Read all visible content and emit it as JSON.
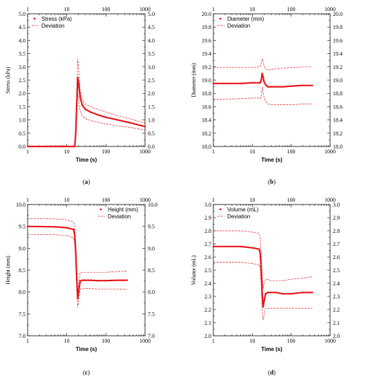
{
  "chart_data": [
    {
      "type": "line",
      "caption": {
        "open": "(",
        "letter": "a",
        "close": ")"
      },
      "xlabel": "Time (s)",
      "ylabel": "Stress (kPa)",
      "xscale": "log",
      "xlim": [
        1,
        1000
      ],
      "ylim": [
        0,
        5
      ],
      "x_ticks": [
        "1",
        "10",
        "100",
        "1000"
      ],
      "y_ticks": [
        "0.0",
        "0.5",
        "1.0",
        "1.5",
        "2.0",
        "2.5",
        "3.0",
        "3.5",
        "4.0",
        "4.5",
        "5.0"
      ],
      "legend": {
        "position": "top-left",
        "entries": [
          "Stress (kPa)",
          "Deviation"
        ]
      },
      "series": [
        {
          "name": "Stress (kPa)",
          "style": "dots",
          "x": [
            1,
            10,
            16,
            17,
            18,
            19,
            20,
            22,
            25,
            30,
            40,
            60,
            100,
            200,
            400,
            1000
          ],
          "y": [
            0,
            0,
            0,
            0.5,
            1.6,
            2.6,
            2.4,
            1.85,
            1.55,
            1.4,
            1.3,
            1.2,
            1.1,
            1.0,
            0.9,
            0.75
          ]
        },
        {
          "name": "Deviation",
          "style": "dashed",
          "x": [
            1,
            10,
            16,
            17,
            18,
            19,
            20,
            22,
            25,
            30,
            40,
            60,
            100,
            200,
            400,
            1000
          ],
          "y": [
            0,
            0,
            0,
            0.7,
            2.0,
            3.3,
            3.0,
            2.1,
            1.75,
            1.6,
            1.5,
            1.4,
            1.3,
            1.15,
            1.05,
            0.88
          ]
        },
        {
          "name": "Deviation",
          "style": "dashed",
          "x": [
            1,
            10,
            16,
            17,
            18,
            19,
            20,
            22,
            25,
            30,
            40,
            60,
            100,
            200,
            400,
            1000
          ],
          "y": [
            0,
            0,
            0,
            0.4,
            1.2,
            2.0,
            1.8,
            1.35,
            1.15,
            1.05,
            0.98,
            0.92,
            0.85,
            0.78,
            0.72,
            0.62
          ]
        }
      ]
    },
    {
      "type": "line",
      "caption": {
        "open": "(",
        "letter": "b",
        "close": ")"
      },
      "xlabel": "Time (s)",
      "ylabel": "Diameter (mm)",
      "xscale": "log",
      "xlim": [
        1,
        1000
      ],
      "ylim": [
        18,
        20
      ],
      "x_ticks": [
        "1",
        "10",
        "100",
        "1000"
      ],
      "y_ticks": [
        "18.0",
        "18.2",
        "18.4",
        "18.6",
        "18.8",
        "19.0",
        "19.2",
        "19.4",
        "19.6",
        "19.8",
        "20.0"
      ],
      "legend": {
        "position": "top-left",
        "entries": [
          "Diameter (mm)",
          "Deviation"
        ]
      },
      "series": [
        {
          "name": "Diameter (mm)",
          "style": "dots",
          "x": [
            1,
            5,
            10,
            15,
            16,
            17,
            18,
            19,
            20,
            22,
            25,
            30,
            40,
            60,
            100,
            200,
            350
          ],
          "y": [
            18.95,
            18.95,
            18.96,
            18.96,
            18.96,
            19.0,
            19.1,
            19.05,
            18.98,
            18.93,
            18.9,
            18.9,
            18.9,
            18.9,
            18.91,
            18.92,
            18.92
          ]
        },
        {
          "name": "Deviation",
          "style": "dashed",
          "x": [
            1,
            5,
            10,
            15,
            16,
            17,
            18,
            19,
            20,
            22,
            25,
            30,
            40,
            60,
            100,
            200,
            350
          ],
          "y": [
            19.19,
            19.19,
            19.19,
            19.2,
            19.21,
            19.25,
            19.32,
            19.28,
            19.22,
            19.17,
            19.15,
            19.16,
            19.17,
            19.18,
            19.19,
            19.2,
            19.2
          ]
        },
        {
          "name": "Deviation",
          "style": "dashed",
          "x": [
            1,
            5,
            10,
            15,
            16,
            17,
            18,
            19,
            20,
            22,
            25,
            30,
            40,
            60,
            100,
            200,
            350
          ],
          "y": [
            18.71,
            18.72,
            18.73,
            18.73,
            18.72,
            18.76,
            18.9,
            18.82,
            18.74,
            18.68,
            18.64,
            18.63,
            18.63,
            18.63,
            18.63,
            18.64,
            18.64
          ]
        }
      ]
    },
    {
      "type": "line",
      "caption": {
        "open": "(",
        "letter": "c",
        "close": ")"
      },
      "xlabel": "Time (s)",
      "ylabel": "Height (mm)",
      "xscale": "log",
      "xlim": [
        1,
        1000
      ],
      "ylim": [
        7,
        10
      ],
      "x_ticks": [
        "1",
        "10",
        "100",
        "1000"
      ],
      "y_ticks": [
        "7.0",
        "7.5",
        "8.0",
        "8.5",
        "9.0",
        "9.5",
        "10.0"
      ],
      "legend": {
        "position": "top-right",
        "entries": [
          "Height (mm)",
          "Deviation"
        ]
      },
      "series": [
        {
          "name": "Height (mm)",
          "style": "dots",
          "x": [
            1,
            5,
            10,
            15,
            16,
            17,
            18,
            19,
            20,
            22,
            25,
            30,
            40,
            60,
            100,
            200,
            350
          ],
          "y": [
            9.5,
            9.49,
            9.47,
            9.43,
            9.3,
            8.9,
            8.3,
            7.85,
            8.0,
            8.25,
            8.27,
            8.27,
            8.27,
            8.26,
            8.26,
            8.27,
            8.27
          ]
        },
        {
          "name": "Deviation",
          "style": "dashed",
          "x": [
            1,
            5,
            10,
            15,
            16,
            17,
            18,
            19,
            20,
            22,
            25,
            30,
            40,
            60,
            100,
            200,
            350
          ],
          "y": [
            9.68,
            9.67,
            9.65,
            9.6,
            9.48,
            9.1,
            8.5,
            8.0,
            8.2,
            8.44,
            8.45,
            8.45,
            8.45,
            8.45,
            8.45,
            8.47,
            8.48
          ]
        },
        {
          "name": "Deviation",
          "style": "dashed",
          "x": [
            1,
            5,
            10,
            15,
            16,
            17,
            18,
            19,
            20,
            22,
            25,
            30,
            40,
            60,
            100,
            200,
            350
          ],
          "y": [
            9.32,
            9.31,
            9.29,
            9.24,
            9.1,
            8.7,
            8.1,
            7.65,
            7.8,
            8.06,
            8.08,
            8.08,
            8.08,
            8.07,
            8.07,
            8.07,
            8.06
          ]
        }
      ]
    },
    {
      "type": "line",
      "caption": {
        "open": "(",
        "letter": "d",
        "close": ")"
      },
      "xlabel": "Time (s)",
      "ylabel": "Volume (mL)",
      "xscale": "log",
      "xlim": [
        1,
        1000
      ],
      "ylim": [
        2,
        3
      ],
      "x_ticks": [
        "1",
        "10",
        "100",
        "1000"
      ],
      "y_ticks": [
        "2.0",
        "2.1",
        "2.2",
        "2.3",
        "2.4",
        "2.5",
        "2.6",
        "2.7",
        "2.8",
        "2.9",
        "3.0"
      ],
      "legend": {
        "position": "top-left",
        "entries": [
          "Volume (mL)",
          "Deviation"
        ]
      },
      "series": [
        {
          "name": "Volume (mL)",
          "style": "dots",
          "x": [
            1,
            5,
            10,
            15,
            16,
            17,
            18,
            19,
            20,
            22,
            25,
            30,
            40,
            60,
            100,
            200,
            350
          ],
          "y": [
            2.68,
            2.68,
            2.67,
            2.66,
            2.63,
            2.5,
            2.32,
            2.22,
            2.26,
            2.32,
            2.33,
            2.33,
            2.33,
            2.32,
            2.32,
            2.33,
            2.33
          ]
        },
        {
          "name": "Deviation",
          "style": "dashed",
          "x": [
            1,
            5,
            10,
            15,
            16,
            17,
            18,
            19,
            20,
            22,
            25,
            30,
            40,
            60,
            100,
            200,
            350
          ],
          "y": [
            2.8,
            2.8,
            2.79,
            2.78,
            2.75,
            2.62,
            2.45,
            2.36,
            2.4,
            2.43,
            2.43,
            2.42,
            2.42,
            2.42,
            2.43,
            2.44,
            2.45
          ]
        },
        {
          "name": "Deviation",
          "style": "dashed",
          "x": [
            1,
            5,
            10,
            15,
            16,
            17,
            18,
            19,
            20,
            22,
            25,
            30,
            40,
            60,
            100,
            200,
            350
          ],
          "y": [
            2.56,
            2.56,
            2.55,
            2.54,
            2.51,
            2.38,
            2.2,
            2.12,
            2.15,
            2.21,
            2.21,
            2.21,
            2.21,
            2.21,
            2.21,
            2.21,
            2.21
          ]
        }
      ]
    }
  ],
  "colors": {
    "series": "#e8141b",
    "axis": "#000000"
  }
}
